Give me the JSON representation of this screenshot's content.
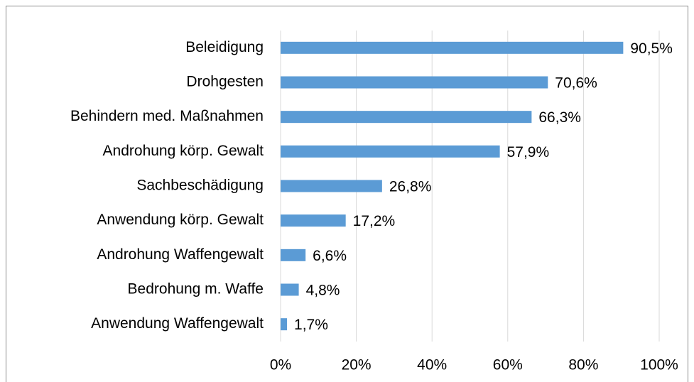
{
  "chart_data": {
    "type": "barh",
    "categories": [
      "Beleidigung",
      "Drohgesten",
      "Behindern med. Maßnahmen",
      "Androhung körp. Gewalt",
      "Sachbeschädigung",
      "Anwendung körp. Gewalt",
      "Androhung Waffengewalt",
      "Bedrohung m. Waffe",
      "Anwendung Waffengewalt"
    ],
    "values": [
      90.5,
      70.6,
      66.3,
      57.9,
      26.8,
      17.2,
      6.6,
      4.8,
      1.7
    ],
    "value_labels": [
      "90,5%",
      "70,6%",
      "66,3%",
      "57,9%",
      "26,8%",
      "17,2%",
      "6,6%",
      "4,8%",
      "1,7%"
    ],
    "color": "#5b9bd5",
    "xlim": [
      0,
      100
    ],
    "xticks": [
      {
        "value": 0,
        "label": "0%"
      },
      {
        "value": 20,
        "label": "20%"
      },
      {
        "value": 40,
        "label": "40%"
      },
      {
        "value": 60,
        "label": "60%"
      },
      {
        "value": 80,
        "label": "80%"
      },
      {
        "value": 100,
        "label": "100%"
      }
    ],
    "grid": true
  }
}
